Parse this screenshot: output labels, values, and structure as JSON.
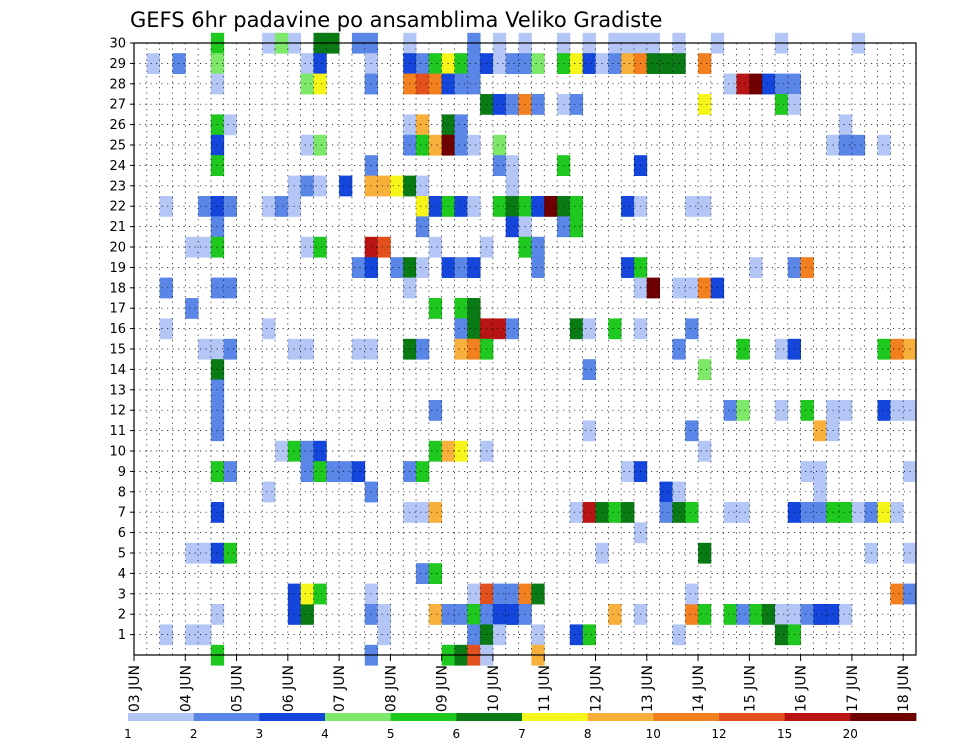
{
  "chart_data": {
    "type": "heatmap",
    "title": "GEFS 6hr padavine po ansamblima Veliko Gradiste",
    "xlabel": "",
    "ylabel": "",
    "x_tick_labels": [
      "03 JUN",
      "04 JUN",
      "05 JUN",
      "06 JUN",
      "07 JUN",
      "08 JUN",
      "09 JUN",
      "10 JUN",
      "11 JUN",
      "12 JUN",
      "13 JUN",
      "14 JUN",
      "15 JUN",
      "16 JUN",
      "17 JUN",
      "18 JUN"
    ],
    "y_tick_labels": [
      "1",
      "2",
      "3",
      "4",
      "5",
      "6",
      "7",
      "8",
      "9",
      "10",
      "11",
      "12",
      "13",
      "14",
      "15",
      "16",
      "17",
      "18",
      "19",
      "20",
      "21",
      "22",
      "23",
      "24",
      "25",
      "26",
      "27",
      "28",
      "29",
      "30"
    ],
    "xlim": [
      0,
      60
    ],
    "ylim": [
      0,
      30
    ],
    "x_unit": "6-hour step from 03 JUN 00Z",
    "y_unit": "ensemble member",
    "grid": true,
    "legend": {
      "placement": "bottom",
      "labels": [
        "1",
        "2",
        "3",
        "4",
        "5",
        "6",
        "7",
        "8",
        "10",
        "12",
        "15",
        "20"
      ],
      "colors": [
        "#b3c6f5",
        "#5a86e8",
        "#1446dc",
        "#7ee86a",
        "#1ec81e",
        "#0a7a14",
        "#f5f51a",
        "#f7b03c",
        "#f2801e",
        "#e2501e",
        "#b81414",
        "#6e0000"
      ]
    },
    "cells": [
      [
        12,
        2,
        3
      ],
      [
        19,
        2,
        5
      ],
      [
        13,
        2,
        6
      ],
      [
        29,
        2,
        6
      ],
      [
        37,
        2,
        8
      ],
      [
        43,
        2,
        9
      ],
      [
        53,
        2,
        11
      ],
      [
        12,
        30,
        1
      ],
      [
        10,
        30,
        1
      ],
      [
        6,
        30,
        5
      ],
      [
        11,
        30,
        4
      ],
      [
        14,
        30,
        6
      ],
      [
        15,
        30,
        6
      ],
      [
        17,
        30,
        2
      ],
      [
        18,
        30,
        2
      ],
      [
        21,
        30,
        1
      ],
      [
        26,
        30,
        2
      ],
      [
        28,
        30,
        1
      ],
      [
        30,
        30,
        1
      ],
      [
        33,
        30,
        1
      ],
      [
        35,
        30,
        1
      ],
      [
        37,
        30,
        1
      ],
      [
        38,
        30,
        1
      ],
      [
        39,
        30,
        1
      ],
      [
        40,
        30,
        1
      ],
      [
        42,
        30,
        1
      ],
      [
        45,
        30,
        1
      ],
      [
        50,
        30,
        1
      ],
      [
        56,
        30,
        1
      ],
      [
        1,
        29,
        1
      ],
      [
        3,
        29,
        2
      ],
      [
        6,
        29,
        4
      ],
      [
        13,
        29,
        1
      ],
      [
        14,
        29,
        3
      ],
      [
        18,
        29,
        1
      ],
      [
        21,
        29,
        3
      ],
      [
        22,
        29,
        2
      ],
      [
        23,
        29,
        5
      ],
      [
        24,
        29,
        7
      ],
      [
        25,
        29,
        5
      ],
      [
        26,
        29,
        2
      ],
      [
        27,
        29,
        3
      ],
      [
        28,
        29,
        1
      ],
      [
        29,
        29,
        2
      ],
      [
        30,
        29,
        2
      ],
      [
        31,
        29,
        4
      ],
      [
        33,
        29,
        5
      ],
      [
        34,
        29,
        7
      ],
      [
        35,
        29,
        3
      ],
      [
        36,
        29,
        1
      ],
      [
        37,
        29,
        2
      ],
      [
        38,
        29,
        8
      ],
      [
        39,
        29,
        9
      ],
      [
        40,
        29,
        6
      ],
      [
        41,
        29,
        6
      ],
      [
        42,
        29,
        1
      ],
      [
        42,
        29,
        6
      ],
      [
        44,
        29,
        9
      ],
      [
        6,
        28,
        1
      ],
      [
        13,
        28,
        4
      ],
      [
        18,
        28,
        2
      ],
      [
        21,
        28,
        9
      ],
      [
        22,
        28,
        10
      ],
      [
        23,
        28,
        9
      ],
      [
        24,
        28,
        3
      ],
      [
        25,
        28,
        2
      ],
      [
        26,
        28,
        2
      ],
      [
        14,
        28,
        7
      ],
      [
        46,
        28,
        1
      ],
      [
        47,
        28,
        11
      ],
      [
        48,
        28,
        12
      ],
      [
        49,
        28,
        3
      ],
      [
        50,
        28,
        2
      ],
      [
        51,
        28,
        2
      ],
      [
        27,
        27,
        6
      ],
      [
        28,
        27,
        3
      ],
      [
        29,
        27,
        2
      ],
      [
        30,
        27,
        9
      ],
      [
        31,
        27,
        2
      ],
      [
        33,
        27,
        1
      ],
      [
        34,
        27,
        2
      ],
      [
        44,
        27,
        7
      ],
      [
        50,
        27,
        5
      ],
      [
        51,
        27,
        1
      ],
      [
        6,
        26,
        5
      ],
      [
        7,
        26,
        1
      ],
      [
        21,
        26,
        1
      ],
      [
        22,
        26,
        8
      ],
      [
        24,
        26,
        6
      ],
      [
        25,
        26,
        2
      ],
      [
        55,
        26,
        1
      ],
      [
        6,
        25,
        3
      ],
      [
        13,
        25,
        1
      ],
      [
        14,
        25,
        4
      ],
      [
        21,
        25,
        2
      ],
      [
        22,
        25,
        5
      ],
      [
        23,
        25,
        8
      ],
      [
        24,
        25,
        12
      ],
      [
        25,
        25,
        2
      ],
      [
        26,
        25,
        1
      ],
      [
        28,
        25,
        4
      ],
      [
        54,
        25,
        1
      ],
      [
        55,
        25,
        2
      ],
      [
        56,
        25,
        2
      ],
      [
        58,
        25,
        1
      ],
      [
        6,
        24,
        5
      ],
      [
        18,
        24,
        2
      ],
      [
        28,
        24,
        2
      ],
      [
        29,
        24,
        1
      ],
      [
        33,
        24,
        5
      ],
      [
        39,
        24,
        3
      ],
      [
        12,
        23,
        1
      ],
      [
        13,
        23,
        2
      ],
      [
        14,
        23,
        1
      ],
      [
        16,
        23,
        3
      ],
      [
        18,
        23,
        8
      ],
      [
        19,
        23,
        8
      ],
      [
        20,
        23,
        7
      ],
      [
        21,
        23,
        6
      ],
      [
        22,
        23,
        1
      ],
      [
        29,
        23,
        1
      ],
      [
        2,
        22,
        1
      ],
      [
        5,
        22,
        2
      ],
      [
        6,
        22,
        3
      ],
      [
        7,
        22,
        2
      ],
      [
        10,
        22,
        1
      ],
      [
        11,
        22,
        2
      ],
      [
        12,
        22,
        1
      ],
      [
        22,
        22,
        7
      ],
      [
        23,
        22,
        3
      ],
      [
        24,
        22,
        5
      ],
      [
        25,
        22,
        3
      ],
      [
        26,
        22,
        1
      ],
      [
        28,
        22,
        5
      ],
      [
        29,
        22,
        6
      ],
      [
        30,
        22,
        5
      ],
      [
        31,
        22,
        3
      ],
      [
        32,
        22,
        12
      ],
      [
        33,
        22,
        6
      ],
      [
        34,
        22,
        5
      ],
      [
        38,
        22,
        3
      ],
      [
        39,
        22,
        1
      ],
      [
        43,
        22,
        1
      ],
      [
        44,
        22,
        1
      ],
      [
        6,
        21,
        2
      ],
      [
        22,
        21,
        2
      ],
      [
        29,
        21,
        3
      ],
      [
        30,
        21,
        1
      ],
      [
        33,
        21,
        2
      ],
      [
        34,
        21,
        5
      ],
      [
        4,
        20,
        1
      ],
      [
        5,
        20,
        1
      ],
      [
        6,
        20,
        5
      ],
      [
        13,
        20,
        1
      ],
      [
        14,
        20,
        5
      ],
      [
        18,
        20,
        11
      ],
      [
        19,
        20,
        10
      ],
      [
        23,
        20,
        1
      ],
      [
        27,
        20,
        1
      ],
      [
        30,
        20,
        5
      ],
      [
        31,
        20,
        2
      ],
      [
        17,
        19,
        2
      ],
      [
        18,
        19,
        3
      ],
      [
        20,
        19,
        2
      ],
      [
        21,
        19,
        6
      ],
      [
        22,
        19,
        1
      ],
      [
        24,
        19,
        3
      ],
      [
        25,
        19,
        2
      ],
      [
        26,
        19,
        3
      ],
      [
        31,
        19,
        2
      ],
      [
        38,
        19,
        3
      ],
      [
        39,
        19,
        5
      ],
      [
        48,
        19,
        1
      ],
      [
        51,
        19,
        2
      ],
      [
        52,
        19,
        9
      ],
      [
        2,
        18,
        2
      ],
      [
        6,
        18,
        2
      ],
      [
        7,
        18,
        2
      ],
      [
        21,
        18,
        1
      ],
      [
        39,
        18,
        1
      ],
      [
        40,
        18,
        12
      ],
      [
        42,
        18,
        1
      ],
      [
        43,
        18,
        1
      ],
      [
        44,
        18,
        9
      ],
      [
        45,
        18,
        3
      ],
      [
        4,
        17,
        2
      ],
      [
        23,
        17,
        5
      ],
      [
        25,
        17,
        5
      ],
      [
        26,
        17,
        6
      ],
      [
        2,
        16,
        1
      ],
      [
        10,
        16,
        1
      ],
      [
        25,
        16,
        2
      ],
      [
        26,
        16,
        6
      ],
      [
        27,
        16,
        11
      ],
      [
        28,
        16,
        11
      ],
      [
        29,
        16,
        2
      ],
      [
        34,
        16,
        6
      ],
      [
        35,
        16,
        1
      ],
      [
        37,
        16,
        5
      ],
      [
        39,
        16,
        1
      ],
      [
        43,
        16,
        2
      ],
      [
        5,
        15,
        1
      ],
      [
        6,
        15,
        1
      ],
      [
        7,
        15,
        2
      ],
      [
        12,
        15,
        1
      ],
      [
        13,
        15,
        1
      ],
      [
        17,
        15,
        1
      ],
      [
        18,
        15,
        1
      ],
      [
        21,
        15,
        6
      ],
      [
        22,
        15,
        2
      ],
      [
        25,
        15,
        8
      ],
      [
        26,
        15,
        9
      ],
      [
        27,
        15,
        5
      ],
      [
        42,
        15,
        2
      ],
      [
        47,
        15,
        5
      ],
      [
        50,
        15,
        1
      ],
      [
        51,
        15,
        3
      ],
      [
        58,
        15,
        5
      ],
      [
        59,
        15,
        9
      ],
      [
        60,
        15,
        8
      ],
      [
        6,
        14,
        6
      ],
      [
        35,
        14,
        2
      ],
      [
        44,
        14,
        4
      ],
      [
        6,
        13,
        2
      ],
      [
        6,
        12,
        2
      ],
      [
        23,
        12,
        2
      ],
      [
        46,
        12,
        2
      ],
      [
        47,
        12,
        4
      ],
      [
        50,
        12,
        1
      ],
      [
        52,
        12,
        5
      ],
      [
        54,
        12,
        1
      ],
      [
        55,
        12,
        1
      ],
      [
        58,
        12,
        3
      ],
      [
        59,
        12,
        1
      ],
      [
        60,
        12,
        1
      ],
      [
        6,
        11,
        2
      ],
      [
        35,
        11,
        1
      ],
      [
        43,
        11,
        2
      ],
      [
        53,
        11,
        8
      ],
      [
        54,
        11,
        1
      ],
      [
        11,
        10,
        1
      ],
      [
        12,
        10,
        5
      ],
      [
        13,
        10,
        2
      ],
      [
        14,
        10,
        3
      ],
      [
        23,
        10,
        5
      ],
      [
        24,
        10,
        8
      ],
      [
        25,
        10,
        7
      ],
      [
        27,
        10,
        1
      ],
      [
        44,
        10,
        1
      ],
      [
        6,
        9,
        5
      ],
      [
        7,
        9,
        2
      ],
      [
        13,
        9,
        2
      ],
      [
        14,
        9,
        5
      ],
      [
        15,
        9,
        2
      ],
      [
        16,
        9,
        2
      ],
      [
        17,
        9,
        3
      ],
      [
        21,
        9,
        2
      ],
      [
        22,
        9,
        5
      ],
      [
        38,
        9,
        1
      ],
      [
        39,
        9,
        3
      ],
      [
        52,
        9,
        1
      ],
      [
        53,
        9,
        1
      ],
      [
        60,
        9,
        1
      ],
      [
        10,
        8,
        1
      ],
      [
        18,
        8,
        2
      ],
      [
        41,
        8,
        3
      ],
      [
        42,
        8,
        1
      ],
      [
        53,
        8,
        1
      ],
      [
        6,
        7,
        3
      ],
      [
        21,
        7,
        1
      ],
      [
        22,
        7,
        1
      ],
      [
        23,
        7,
        8
      ],
      [
        34,
        7,
        1
      ],
      [
        35,
        7,
        11
      ],
      [
        36,
        7,
        6
      ],
      [
        37,
        7,
        5
      ],
      [
        38,
        7,
        6
      ],
      [
        41,
        7,
        2
      ],
      [
        42,
        7,
        6
      ],
      [
        43,
        7,
        5
      ],
      [
        46,
        7,
        1
      ],
      [
        47,
        7,
        1
      ],
      [
        51,
        7,
        3
      ],
      [
        52,
        7,
        2
      ],
      [
        53,
        7,
        2
      ],
      [
        54,
        7,
        5
      ],
      [
        55,
        7,
        5
      ],
      [
        56,
        7,
        1
      ],
      [
        57,
        7,
        2
      ],
      [
        58,
        7,
        7
      ],
      [
        59,
        7,
        1
      ],
      [
        39,
        6,
        1
      ],
      [
        4,
        5,
        1
      ],
      [
        5,
        5,
        1
      ],
      [
        6,
        5,
        3
      ],
      [
        7,
        5,
        5
      ],
      [
        36,
        5,
        1
      ],
      [
        44,
        5,
        6
      ],
      [
        57,
        5,
        1
      ],
      [
        60,
        5,
        1
      ],
      [
        22,
        4,
        2
      ],
      [
        23,
        4,
        5
      ],
      [
        12,
        3,
        3
      ],
      [
        13,
        3,
        7
      ],
      [
        14,
        3,
        5
      ],
      [
        18,
        3,
        1
      ],
      [
        26,
        3,
        1
      ],
      [
        27,
        3,
        10
      ],
      [
        28,
        3,
        2
      ],
      [
        29,
        3,
        2
      ],
      [
        30,
        3,
        9
      ],
      [
        31,
        3,
        6
      ],
      [
        43,
        3,
        1
      ],
      [
        59,
        3,
        9
      ],
      [
        60,
        3,
        2
      ],
      [
        6,
        2,
        1
      ],
      [
        18,
        2,
        2
      ],
      [
        19,
        2,
        1
      ],
      [
        23,
        2,
        8
      ],
      [
        24,
        2,
        2
      ],
      [
        25,
        2,
        2
      ],
      [
        26,
        2,
        5
      ],
      [
        27,
        2,
        2
      ],
      [
        28,
        2,
        3
      ],
      [
        29,
        2,
        3
      ],
      [
        30,
        2,
        2
      ],
      [
        39,
        2,
        1
      ],
      [
        44,
        2,
        5
      ],
      [
        46,
        2,
        5
      ],
      [
        47,
        2,
        2
      ],
      [
        48,
        2,
        5
      ],
      [
        49,
        2,
        6
      ],
      [
        50,
        2,
        1
      ],
      [
        51,
        2,
        1
      ],
      [
        52,
        2,
        2
      ],
      [
        53,
        2,
        3
      ],
      [
        54,
        2,
        3
      ],
      [
        55,
        2,
        1
      ],
      [
        2,
        1,
        1
      ],
      [
        4,
        1,
        1
      ],
      [
        5,
        1,
        1
      ],
      [
        19,
        1,
        1
      ],
      [
        26,
        1,
        2
      ],
      [
        27,
        1,
        6
      ],
      [
        28,
        1,
        1
      ],
      [
        31,
        1,
        1
      ],
      [
        34,
        1,
        3
      ],
      [
        35,
        1,
        5
      ],
      [
        42,
        1,
        1
      ],
      [
        50,
        1,
        6
      ],
      [
        51,
        1,
        5
      ],
      [
        6,
        0,
        5
      ],
      [
        18,
        0,
        2
      ],
      [
        24,
        0,
        5
      ],
      [
        25,
        0,
        6
      ],
      [
        26,
        0,
        10
      ],
      [
        27,
        0,
        1
      ],
      [
        31,
        0,
        8
      ],
      [
        5,
        25,
        0
      ],
      [
        5,
        24,
        0
      ]
    ]
  }
}
